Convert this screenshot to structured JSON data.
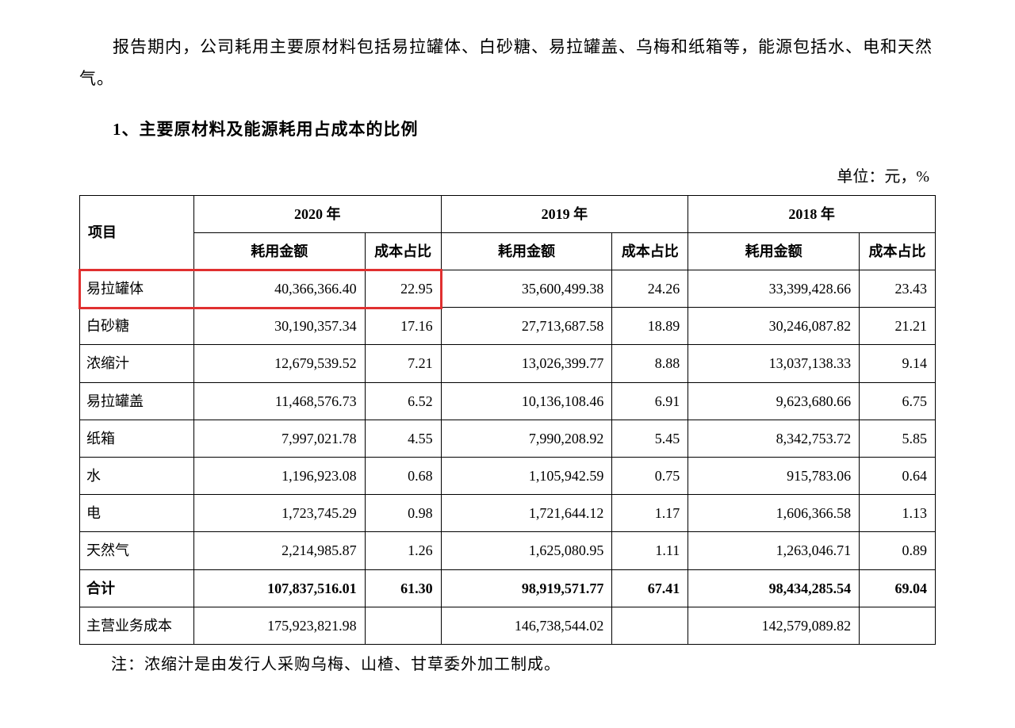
{
  "intro": "报告期内，公司耗用主要原材料包括易拉罐体、白砂糖、易拉罐盖、乌梅和纸箱等，能源包括水、电和天然气。",
  "section_title": "1、主要原材料及能源耗用占成本的比例",
  "unit_label": "单位：元，%",
  "table": {
    "header": {
      "item": "项目",
      "years": [
        "2020 年",
        "2019 年",
        "2018 年"
      ],
      "sub_amount": "耗用金额",
      "sub_ratio": "成本占比"
    },
    "rows": [
      {
        "item": "易拉罐体",
        "y2020_amt": "40,366,366.40",
        "y2020_ratio": "22.95",
        "y2019_amt": "35,600,499.38",
        "y2019_ratio": "24.26",
        "y2018_amt": "33,399,428.66",
        "y2018_ratio": "23.43",
        "highlight": true
      },
      {
        "item": "白砂糖",
        "y2020_amt": "30,190,357.34",
        "y2020_ratio": "17.16",
        "y2019_amt": "27,713,687.58",
        "y2019_ratio": "18.89",
        "y2018_amt": "30,246,087.82",
        "y2018_ratio": "21.21"
      },
      {
        "item": "浓缩汁",
        "y2020_amt": "12,679,539.52",
        "y2020_ratio": "7.21",
        "y2019_amt": "13,026,399.77",
        "y2019_ratio": "8.88",
        "y2018_amt": "13,037,138.33",
        "y2018_ratio": "9.14"
      },
      {
        "item": "易拉罐盖",
        "y2020_amt": "11,468,576.73",
        "y2020_ratio": "6.52",
        "y2019_amt": "10,136,108.46",
        "y2019_ratio": "6.91",
        "y2018_amt": "9,623,680.66",
        "y2018_ratio": "6.75"
      },
      {
        "item": "纸箱",
        "y2020_amt": "7,997,021.78",
        "y2020_ratio": "4.55",
        "y2019_amt": "7,990,208.92",
        "y2019_ratio": "5.45",
        "y2018_amt": "8,342,753.72",
        "y2018_ratio": "5.85"
      },
      {
        "item": "水",
        "y2020_amt": "1,196,923.08",
        "y2020_ratio": "0.68",
        "y2019_amt": "1,105,942.59",
        "y2019_ratio": "0.75",
        "y2018_amt": "915,783.06",
        "y2018_ratio": "0.64"
      },
      {
        "item": "电",
        "y2020_amt": "1,723,745.29",
        "y2020_ratio": "0.98",
        "y2019_amt": "1,721,644.12",
        "y2019_ratio": "1.17",
        "y2018_amt": "1,606,366.58",
        "y2018_ratio": "1.13"
      },
      {
        "item": "天然气",
        "y2020_amt": "2,214,985.87",
        "y2020_ratio": "1.26",
        "y2019_amt": "1,625,080.95",
        "y2019_ratio": "1.11",
        "y2018_amt": "1,263,046.71",
        "y2018_ratio": "0.89"
      },
      {
        "item": "合计",
        "y2020_amt": "107,837,516.01",
        "y2020_ratio": "61.30",
        "y2019_amt": "98,919,571.77",
        "y2019_ratio": "67.41",
        "y2018_amt": "98,434,285.54",
        "y2018_ratio": "69.04",
        "bold": true
      },
      {
        "item": "主营业务成本",
        "y2020_amt": "175,923,821.98",
        "y2020_ratio": "",
        "y2019_amt": "146,738,544.02",
        "y2019_ratio": "",
        "y2018_amt": "142,579,089.82",
        "y2018_ratio": ""
      }
    ]
  },
  "footnote": "注：浓缩汁是由发行人采购乌梅、山楂、甘草委外加工制成。",
  "highlight_color": "#e03030"
}
